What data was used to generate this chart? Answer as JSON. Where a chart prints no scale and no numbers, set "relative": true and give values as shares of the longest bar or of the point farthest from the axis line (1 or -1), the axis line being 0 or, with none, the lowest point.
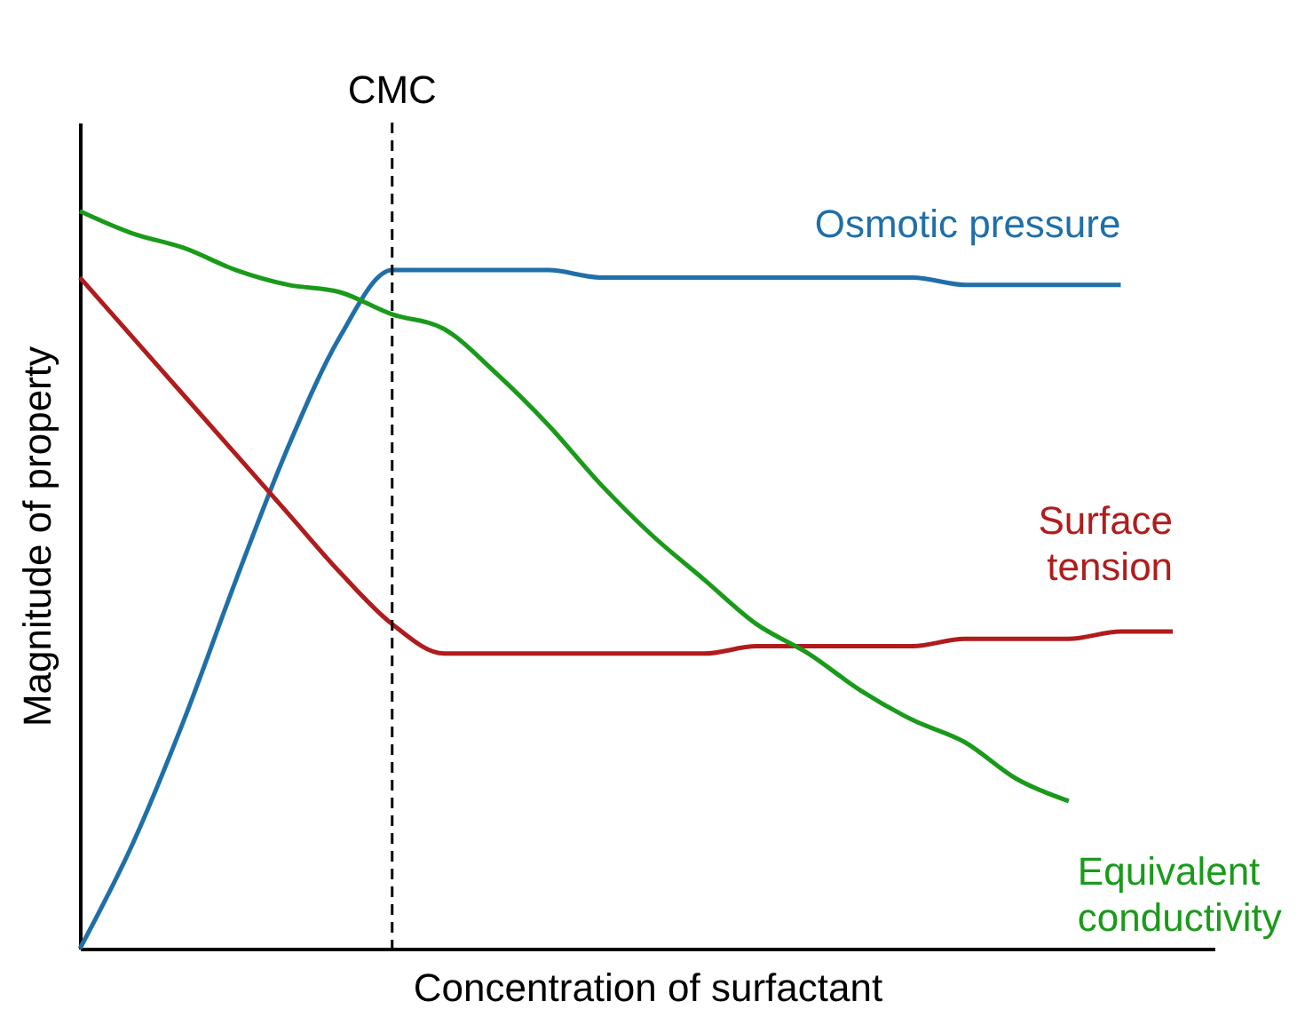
{
  "chart_data": {
    "type": "line",
    "relative": true,
    "xlabel": "Concentration of surfactant",
    "ylabel": "Magnitude of property",
    "categories": [
      null,
      null,
      null,
      null,
      null,
      null,
      null,
      null,
      null,
      null,
      null,
      null,
      null,
      null,
      null,
      null,
      null,
      null,
      null,
      null,
      null,
      null
    ],
    "tick_labels": false,
    "annotations": [
      "CMC"
    ],
    "series": [
      {
        "name": "Osmotic pressure",
        "color": "#1f6fa8",
        "values": [
          0,
          0.14,
          0.31,
          0.5,
          0.68,
          0.83,
          0.92,
          0.92,
          0.92,
          0.92,
          0.91,
          0.91,
          0.91,
          0.91,
          0.91,
          0.91,
          0.91,
          0.9,
          0.9,
          0.9,
          0.9,
          null
        ]
      },
      {
        "name": "Surface\ntension",
        "color": "#b01c1c",
        "values": [
          0.91,
          0.83,
          0.75,
          0.67,
          0.59,
          0.51,
          0.44,
          0.4,
          0.4,
          0.4,
          0.4,
          0.4,
          0.4,
          0.41,
          0.41,
          0.41,
          0.41,
          0.42,
          0.42,
          0.42,
          0.43,
          0.43
        ]
      },
      {
        "name": "Equivalent\nconductivity",
        "color": "#1a9a1a",
        "values": [
          1.0,
          0.97,
          0.95,
          0.92,
          0.9,
          0.89,
          0.86,
          0.84,
          0.78,
          0.71,
          0.63,
          0.56,
          0.5,
          0.44,
          0.4,
          0.35,
          0.31,
          0.28,
          0.23,
          0.2,
          null,
          null
        ]
      }
    ],
    "legend": false,
    "grid": false
  }
}
